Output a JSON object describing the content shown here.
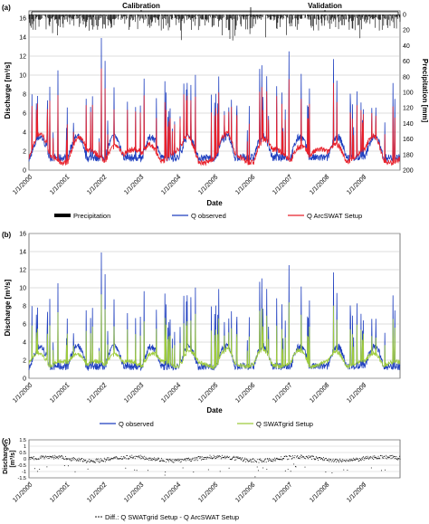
{
  "chart_data": [
    {
      "panel": "(a)",
      "type": "line",
      "x_ticks": [
        "1/1/2000",
        "1/1/2001",
        "1/1/2002",
        "1/1/2003",
        "1/1/2004",
        "1/1/2005",
        "1/1/2006",
        "1/1/2007",
        "1/1/2008",
        "1/1/2009"
      ],
      "xlabel": "Date",
      "ylabel": "Discharge  [m³/s]",
      "ylabel_right": "Precipitation  [mm]",
      "ylim": [
        0,
        16
      ],
      "ylim_right": [
        200,
        0
      ],
      "y_ticks": [
        "0",
        "2",
        "4",
        "6",
        "8",
        "10",
        "12",
        "14",
        "16"
      ],
      "y_ticks_right": [
        "0",
        "20",
        "40",
        "60",
        "80",
        "100",
        "120",
        "140",
        "160",
        "180",
        "200"
      ],
      "periods": [
        "Calibration",
        "Validation"
      ],
      "series": [
        {
          "name": "Precipitation",
          "color": "#000000",
          "kind": "bars-inverted"
        },
        {
          "name": "Q observed",
          "color": "#1f3fbf",
          "kind": "line"
        },
        {
          "name": "Q ArcSWAT Setup",
          "color": "#e8202a",
          "kind": "line"
        }
      ]
    },
    {
      "panel": "(b)",
      "type": "line",
      "x_ticks": [
        "1/1/2000",
        "1/1/2001",
        "1/1/2002",
        "1/1/2003",
        "1/1/2004",
        "1/1/2005",
        "1/1/2006",
        "1/1/2007",
        "1/1/2008",
        "1/1/2009"
      ],
      "xlabel": "Date",
      "ylabel": "Discharge  [m³/s]",
      "ylim": [
        0,
        16
      ],
      "y_ticks": [
        "0",
        "2",
        "4",
        "6",
        "8",
        "10",
        "12",
        "14",
        "16"
      ],
      "series": [
        {
          "name": "Q observed",
          "color": "#1f3fbf",
          "kind": "line"
        },
        {
          "name": "Q SWATgrid Setup",
          "color": "#9ecb3c",
          "kind": "line"
        }
      ]
    },
    {
      "panel": "(c)",
      "type": "scatter",
      "x_ticks": [
        "1/1/2000",
        "1/1/2001",
        "1/1/2002",
        "1/1/2003",
        "1/1/2004",
        "1/1/2005",
        "1/1/2006",
        "1/1/2007",
        "1/1/2008",
        "1/1/2009"
      ],
      "xlabel": "Date",
      "ylabel": "Discharge\n[m³/s]",
      "ylim": [
        -1.5,
        1.5
      ],
      "y_ticks": [
        "1.5",
        "1",
        "0.5",
        "0",
        "-0.5",
        "-1",
        "-1.5"
      ],
      "series": [
        {
          "name": "Diff.: Q SWATgrid Setup - Q ArcSWAT Setup",
          "color": "#000000",
          "kind": "points"
        }
      ]
    }
  ]
}
